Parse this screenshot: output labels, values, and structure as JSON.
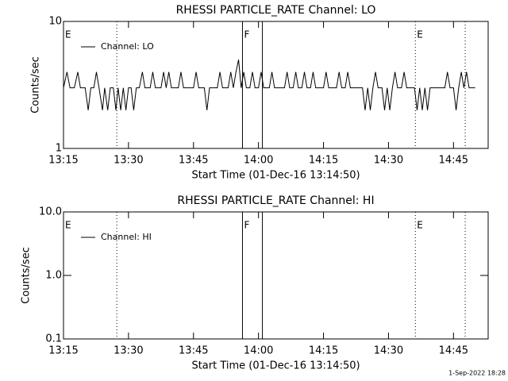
{
  "chart_data": [
    {
      "type": "line",
      "title": "RHESSI PARTICLE_RATE Channel: LO",
      "xlabel": "Start Time (01-Dec-16 13:14:50)",
      "ylabel": "Counts/sec",
      "x": [
        795,
        795.8,
        796.5,
        797.5,
        798.3,
        798.9,
        800,
        800.7,
        801.3,
        802,
        802.6,
        803.2,
        804,
        804.5,
        805.2,
        805.8,
        806.5,
        807.1,
        807.6,
        808.2,
        808.8,
        809.4,
        810,
        810.6,
        811.2,
        811.8,
        812.5,
        813.2,
        813.8,
        815,
        815.6,
        816.2,
        817.5,
        818.1,
        818.7,
        819.3,
        819.9,
        821.5,
        822.1,
        822.7,
        825,
        825.6,
        826.2,
        827.5,
        828.1,
        828.7,
        830.5,
        831.1,
        831.7,
        833,
        833.6,
        834.2,
        834.8,
        835.4,
        836,
        836.6,
        837.2,
        838,
        838.6,
        839.2,
        840,
        840.6,
        841.2,
        842.5,
        843.1,
        843.7,
        846,
        846.6,
        847.2,
        848,
        848.6,
        849.2,
        850,
        850.6,
        851.2,
        852,
        852.6,
        853.2,
        855,
        855.6,
        856.2,
        858,
        858.6,
        859.2,
        860,
        860.6,
        861.2,
        864,
        864.6,
        865.2,
        865.8,
        866.4,
        867,
        867.6,
        868.5,
        869.1,
        869.7,
        870.3,
        870.9,
        871.5,
        872.1,
        873,
        873.6,
        874.2,
        876,
        876.6,
        877.2,
        877.8,
        878.4,
        879,
        879.6,
        883,
        883.6,
        884.2,
        885,
        885.6,
        886.2,
        886.8,
        887.4,
        888,
        888.6,
        890
      ],
      "series": [
        {
          "name": "Channel: LO",
          "color": "#000000",
          "values": [
            3,
            4,
            3,
            3,
            4,
            3,
            3,
            2,
            3,
            3,
            4,
            3,
            2,
            3,
            2,
            3,
            3,
            2,
            3,
            2,
            3,
            2,
            3,
            3,
            2,
            3,
            3,
            4,
            3,
            3,
            4,
            3,
            3,
            4,
            3,
            4,
            3,
            3,
            4,
            3,
            3,
            4,
            3,
            3,
            2,
            3,
            3,
            4,
            3,
            3,
            4,
            3,
            4,
            5,
            3,
            4,
            3,
            3,
            4,
            3,
            3,
            4,
            3,
            3,
            4,
            3,
            3,
            4,
            3,
            3,
            4,
            3,
            3,
            4,
            3,
            3,
            4,
            3,
            3,
            4,
            3,
            3,
            4,
            3,
            3,
            4,
            3,
            3,
            2,
            3,
            2,
            3,
            4,
            3,
            3,
            2,
            3,
            2,
            3,
            4,
            3,
            3,
            4,
            3,
            3,
            2,
            3,
            2,
            3,
            2,
            3,
            3,
            4,
            3,
            3,
            2,
            3,
            4,
            3,
            4,
            3,
            3
          ]
        }
      ],
      "xlim": [
        795,
        893
      ],
      "xticks": [
        {
          "value": 795,
          "label": "13:15"
        },
        {
          "value": 810,
          "label": "13:30"
        },
        {
          "value": 825,
          "label": "13:45"
        },
        {
          "value": 840,
          "label": "14:00"
        },
        {
          "value": 855,
          "label": "14:15"
        },
        {
          "value": 870,
          "label": "14:30"
        },
        {
          "value": 885,
          "label": "14:45"
        }
      ],
      "ylim": [
        1,
        10
      ],
      "yticks": [
        1,
        10
      ],
      "log_y": true,
      "legend": "upper left",
      "vlines": [
        {
          "x": 807.3,
          "style": "dotted"
        },
        {
          "x": 836.3,
          "style": "solid"
        },
        {
          "x": 840.9,
          "style": "solid"
        },
        {
          "x": 876.2,
          "style": "dotted"
        },
        {
          "x": 887.7,
          "style": "dotted"
        }
      ],
      "annotations": [
        {
          "x": 795,
          "text": "E"
        },
        {
          "x": 836.3,
          "text": "F"
        },
        {
          "x": 876.2,
          "text": "E"
        }
      ]
    },
    {
      "type": "line",
      "title": "RHESSI PARTICLE_RATE Channel: HI",
      "xlabel": "Start Time (01-Dec-16 13:14:50)",
      "ylabel": "Counts/sec",
      "x": [],
      "series": [
        {
          "name": "Channel: HI",
          "color": "#000000",
          "values": []
        }
      ],
      "xlim": [
        795,
        893
      ],
      "xticks": [
        {
          "value": 795,
          "label": "13:15"
        },
        {
          "value": 810,
          "label": "13:30"
        },
        {
          "value": 825,
          "label": "13:45"
        },
        {
          "value": 840,
          "label": "14:00"
        },
        {
          "value": 855,
          "label": "14:15"
        },
        {
          "value": 870,
          "label": "14:30"
        },
        {
          "value": 885,
          "label": "14:45"
        }
      ],
      "ylim": [
        0.1,
        10
      ],
      "yticks": [
        {
          "value": 0.1,
          "label": "0.1"
        },
        {
          "value": 1,
          "label": "1.0"
        },
        {
          "value": 10,
          "label": "10.0"
        }
      ],
      "log_y": true,
      "legend": "upper left",
      "vlines": [
        {
          "x": 807.3,
          "style": "dotted"
        },
        {
          "x": 836.3,
          "style": "solid"
        },
        {
          "x": 840.9,
          "style": "solid"
        },
        {
          "x": 876.2,
          "style": "dotted"
        },
        {
          "x": 887.7,
          "style": "dotted"
        }
      ],
      "annotations": [
        {
          "x": 795,
          "text": "E"
        },
        {
          "x": 836.3,
          "text": "F"
        },
        {
          "x": 876.2,
          "text": "E"
        }
      ]
    }
  ],
  "footer": "1-Sep-2022 18:28"
}
